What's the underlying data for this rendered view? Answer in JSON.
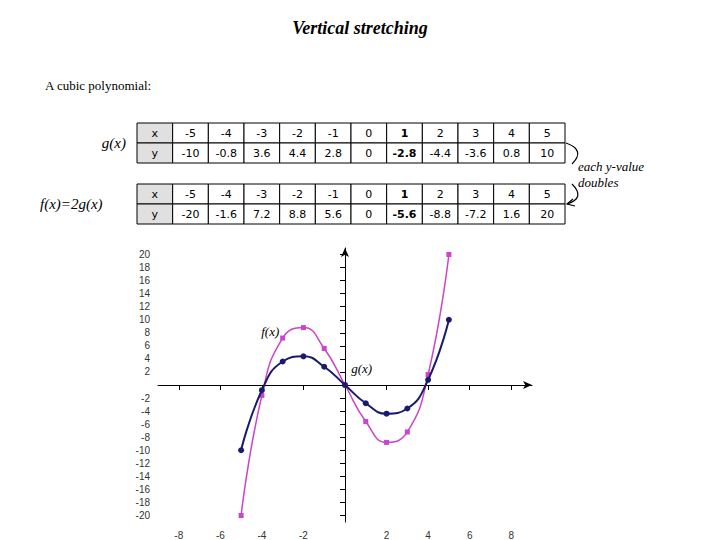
{
  "chart_data": {
    "type": "line",
    "title": "Vertical stretching",
    "subtitle": "A cubic polynomial:",
    "x": [
      -5,
      -4,
      -3,
      -2,
      -1,
      0,
      1,
      2,
      3,
      4,
      5
    ],
    "series": [
      {
        "name": "g(x)",
        "color": "#1a1a6e",
        "marker": "circle",
        "values": [
          -10,
          -0.8,
          3.6,
          4.4,
          2.8,
          0,
          -2.8,
          -4.4,
          -3.6,
          0.8,
          10
        ]
      },
      {
        "name": "f(x)",
        "color": "#cc44cc",
        "marker": "square",
        "values": [
          -20,
          -1.6,
          7.2,
          8.8,
          5.6,
          0,
          -5.6,
          -8.8,
          -7.2,
          1.6,
          20
        ]
      }
    ],
    "tables": [
      {
        "title": "g(x)",
        "header": [
          "x",
          "y"
        ]
      },
      {
        "title": "f(x)=2g(x)",
        "header": [
          "x",
          "y"
        ]
      }
    ],
    "annotation": "each y-value\ndoubles",
    "xlim": [
      -9,
      9
    ],
    "ylim": [
      -21,
      21
    ],
    "xticks": [
      -8,
      -6,
      -4,
      -2,
      2,
      4,
      6,
      8
    ],
    "yticks": [
      -20,
      -18,
      -16,
      -14,
      -12,
      -10,
      -8,
      -6,
      -4,
      -2,
      2,
      4,
      6,
      8,
      10,
      12,
      14,
      16,
      18,
      20
    ],
    "grid": false
  }
}
